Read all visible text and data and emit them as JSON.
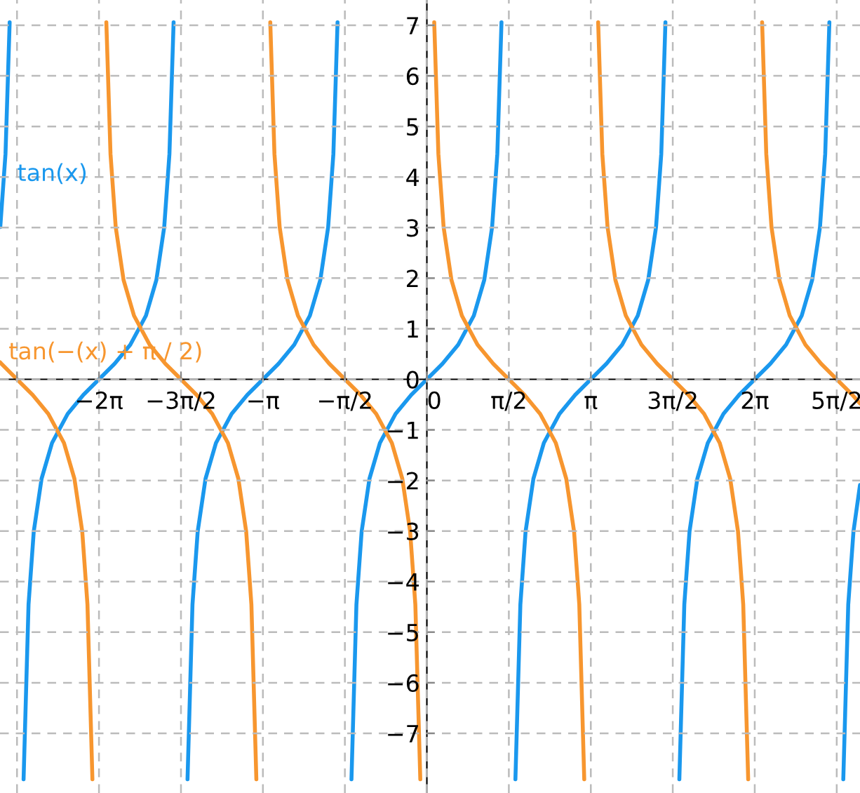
{
  "chart_data": {
    "type": "line",
    "xlim": [
      -8.18,
      8.3
    ],
    "ylim": [
      -8.18,
      7.5
    ],
    "xticks": [
      {
        "value": -7.854,
        "label": null
      },
      {
        "value": -6.283,
        "label": "−2π"
      },
      {
        "value": -4.712,
        "label": "−3π/2"
      },
      {
        "value": -3.142,
        "label": "−π"
      },
      {
        "value": -1.571,
        "label": "−π/2"
      },
      {
        "value": 0,
        "label": "0"
      },
      {
        "value": 1.571,
        "label": "π/2"
      },
      {
        "value": 3.142,
        "label": "π"
      },
      {
        "value": 4.712,
        "label": "3π/2"
      },
      {
        "value": 6.283,
        "label": "2π"
      },
      {
        "value": 7.854,
        "label": "5π/2"
      }
    ],
    "yticks": [
      -7,
      -6,
      -5,
      -4,
      -3,
      -2,
      -1,
      0,
      1,
      2,
      3,
      4,
      5,
      6,
      7
    ],
    "grid": true,
    "legend": false,
    "marker": "none",
    "line_style": "solid",
    "series": [
      {
        "name": "tan(x)",
        "color": "#1a98ee",
        "x": [
          -8.1748,
          -8.0748,
          -7.9948,
          -7.854,
          -7.7282,
          -7.6332,
          -7.5332,
          -7.3832,
          -7.1832,
          -6.8832,
          -6.5832,
          -6.2832,
          -5.9832,
          -5.6832,
          -5.3832,
          -5.1832,
          -5.0332,
          -4.9332,
          -4.8532,
          -4.712,
          -4.5866,
          -4.4916,
          -4.3916,
          -4.2416,
          -4.0416,
          -3.7416,
          -3.4416,
          -3.1416,
          -2.8416,
          -2.5416,
          -2.2416,
          -2.0416,
          -1.8916,
          -1.7916,
          -1.7116,
          -1.571,
          -1.445,
          -1.35,
          -1.25,
          -1.1,
          -0.9,
          -0.6,
          -0.3,
          0,
          0.3,
          0.6,
          0.9,
          1.1,
          1.25,
          1.35,
          1.43,
          1.571,
          1.6966,
          1.7916,
          1.8916,
          2.0416,
          2.2416,
          2.5416,
          2.8416,
          3.1416,
          3.4416,
          3.7416,
          4.0416,
          4.2416,
          4.3916,
          4.4916,
          4.5716,
          4.712,
          4.8382,
          4.9332,
          5.0332,
          5.1832,
          5.3832,
          5.6832,
          5.9832,
          6.2832,
          6.5832,
          6.8832,
          7.1832,
          7.3832,
          7.5332,
          7.6332,
          7.7132,
          7.854,
          7.9798,
          8.0748,
          8.1748,
          8.3
        ],
        "values": [
          3.01,
          4.455,
          7.06,
          null,
          -7.91,
          -4.455,
          -3.01,
          -1.965,
          -1.26,
          -0.684,
          -0.309,
          0,
          0.309,
          0.684,
          1.26,
          1.965,
          3.01,
          4.455,
          7.06,
          null,
          -7.91,
          -4.455,
          -3.01,
          -1.965,
          -1.26,
          -0.684,
          -0.309,
          0,
          0.309,
          0.684,
          1.26,
          1.965,
          3.01,
          4.455,
          7.06,
          null,
          -7.91,
          -4.455,
          -3.01,
          -1.965,
          -1.26,
          -0.684,
          -0.309,
          0,
          0.309,
          0.684,
          1.26,
          1.965,
          3.01,
          4.455,
          7.06,
          null,
          -7.91,
          -4.455,
          -3.01,
          -1.965,
          -1.26,
          -0.684,
          -0.309,
          0,
          0.309,
          0.684,
          1.26,
          1.965,
          3.01,
          4.455,
          7.06,
          null,
          -7.91,
          -4.455,
          -3.01,
          -1.965,
          -1.26,
          -0.684,
          -0.309,
          0,
          0.309,
          0.684,
          1.26,
          1.965,
          3.01,
          4.455,
          7.06,
          null,
          -7.91,
          -4.455,
          -3.01,
          -2.09
        ]
      },
      {
        "name": "tan(−(x) + π / 2)",
        "color": "#f7962f",
        "x": [
          -8.18,
          -8.154,
          -7.854,
          -7.554,
          -7.254,
          -6.954,
          -6.754,
          -6.604,
          -6.504,
          -6.409,
          -6.283,
          -6.1424,
          -6.0624,
          -5.9624,
          -5.8124,
          -5.6124,
          -5.3124,
          -5.0124,
          -4.7124,
          -4.4124,
          -4.1124,
          -3.8124,
          -3.6124,
          -3.4624,
          -3.3624,
          -3.2674,
          -3.142,
          -3.0008,
          -2.9208,
          -2.8208,
          -2.6708,
          -2.4708,
          -2.1708,
          -1.8708,
          -1.5708,
          -1.2708,
          -0.9708,
          -0.6708,
          -0.4708,
          -0.3208,
          -0.2208,
          -0.1258,
          0,
          0.1408,
          0.2208,
          0.3208,
          0.4708,
          0.6708,
          0.9708,
          1.2708,
          1.5708,
          1.8708,
          2.1708,
          2.4708,
          2.6708,
          2.8208,
          2.9208,
          3.0158,
          3.142,
          3.2824,
          3.3624,
          3.4624,
          3.6124,
          3.8124,
          4.1124,
          4.4124,
          4.7124,
          5.0124,
          5.3124,
          5.6124,
          5.8124,
          5.9624,
          6.0624,
          6.1574,
          6.283,
          6.424,
          6.504,
          6.604,
          6.754,
          6.954,
          7.254,
          7.554,
          7.854,
          8.154,
          8.3
        ],
        "values": [
          0.338,
          0.309,
          0,
          -0.309,
          -0.684,
          -1.26,
          -1.965,
          -3.01,
          -4.455,
          -7.91,
          null,
          7.06,
          4.455,
          3.01,
          1.965,
          1.26,
          0.684,
          0.309,
          0,
          -0.309,
          -0.684,
          -1.26,
          -1.965,
          -3.01,
          -4.455,
          -7.91,
          null,
          7.06,
          4.455,
          3.01,
          1.965,
          1.26,
          0.684,
          0.309,
          0,
          -0.309,
          -0.684,
          -1.26,
          -1.965,
          -3.01,
          -4.455,
          -7.91,
          null,
          7.06,
          4.455,
          3.01,
          1.965,
          1.26,
          0.684,
          0.309,
          0,
          -0.309,
          -0.684,
          -1.26,
          -1.965,
          -3.01,
          -4.455,
          -7.91,
          null,
          7.06,
          4.455,
          3.01,
          1.965,
          1.26,
          0.684,
          0.309,
          0,
          -0.309,
          -0.684,
          -1.26,
          -1.965,
          -3.01,
          -4.455,
          -7.91,
          null,
          7.06,
          4.455,
          3.01,
          1.965,
          1.26,
          0.684,
          0.309,
          0,
          -0.309,
          -0.478
        ]
      }
    ]
  }
}
